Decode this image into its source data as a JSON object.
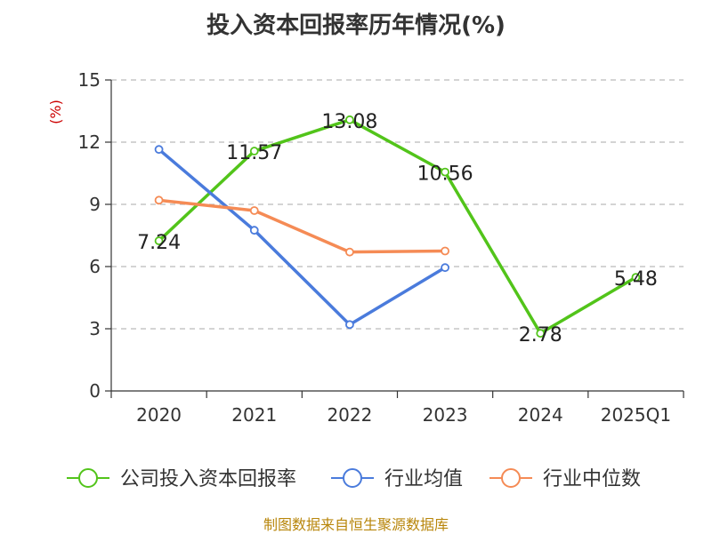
{
  "chart_data": {
    "type": "line",
    "title": "投入资本回报率历年情况(%)",
    "ylabel": "(%)",
    "ylim": [
      0,
      15
    ],
    "yticks": [
      0,
      3,
      6,
      9,
      12,
      15
    ],
    "grid": true,
    "legend_position": "bottom",
    "categories": [
      "2020",
      "2021",
      "2022",
      "2023",
      "2024",
      "2025Q1"
    ],
    "series": [
      {
        "name": "公司投入资本回报率",
        "color": "#52c41a",
        "values": [
          7.24,
          11.57,
          13.08,
          10.56,
          2.78,
          5.48
        ],
        "labels": [
          "7.24",
          "11.57",
          "13.08",
          "10.56",
          "2.78",
          "5.48"
        ]
      },
      {
        "name": "行业均值",
        "color": "#4a7bdc",
        "values": [
          11.65,
          7.75,
          3.2,
          5.95,
          null,
          null
        ]
      },
      {
        "name": "行业中位数",
        "color": "#f58b55",
        "values": [
          9.2,
          8.7,
          6.7,
          6.75,
          null,
          null
        ]
      }
    ]
  },
  "source": "制图数据来自恒生聚源数据库"
}
